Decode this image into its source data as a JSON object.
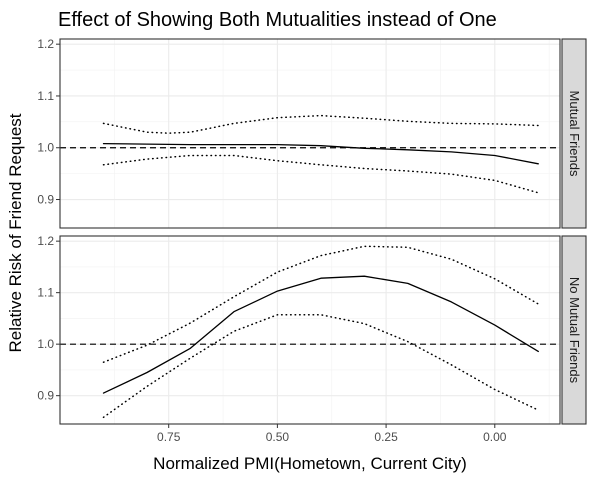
{
  "chart_data": {
    "type": "line",
    "title": "Effect of Showing Both Mutualities instead of One",
    "xlabel": "Normalized PMI(Hometown, Current City)",
    "ylabel": "Relative Risk of Friend Request",
    "x_reversed": true,
    "xlim": [
      1.0,
      -0.15
    ],
    "ylim": [
      0.845,
      1.21
    ],
    "x_ticks": [
      0.75,
      0.5,
      0.25,
      0.0
    ],
    "x_tick_labels": [
      "0.75",
      "0.50",
      "0.25",
      "0.00"
    ],
    "y_ticks": [
      0.9,
      1.0,
      1.1,
      1.2
    ],
    "y_tick_labels": [
      "0.9",
      "1.0",
      "1.1",
      "1.2"
    ],
    "reference_line": 1.0,
    "grid": true,
    "panels": [
      {
        "label": "Mutual Friends",
        "series": [
          {
            "name": "estimate",
            "style": "solid",
            "x": [
              0.9,
              0.8,
              0.7,
              0.6,
              0.5,
              0.4,
              0.3,
              0.2,
              0.1,
              0.0,
              -0.1
            ],
            "y": [
              1.008,
              1.007,
              1.006,
              1.006,
              1.006,
              1.004,
              0.999,
              0.996,
              0.992,
              0.985,
              0.969
            ]
          },
          {
            "name": "upper bound",
            "style": "dotted",
            "x": [
              0.9,
              0.8,
              0.75,
              0.7,
              0.6,
              0.5,
              0.4,
              0.3,
              0.2,
              0.1,
              0.0,
              -0.1
            ],
            "y": [
              1.047,
              1.03,
              1.028,
              1.03,
              1.047,
              1.058,
              1.062,
              1.057,
              1.051,
              1.047,
              1.046,
              1.043
            ]
          },
          {
            "name": "lower bound",
            "style": "dotted",
            "x": [
              0.9,
              0.8,
              0.7,
              0.6,
              0.5,
              0.4,
              0.3,
              0.2,
              0.1,
              0.0,
              -0.1
            ],
            "y": [
              0.967,
              0.978,
              0.985,
              0.985,
              0.975,
              0.967,
              0.96,
              0.955,
              0.949,
              0.937,
              0.913
            ]
          }
        ]
      },
      {
        "label": "No Mutual Friends",
        "series": [
          {
            "name": "estimate",
            "style": "solid",
            "x": [
              0.9,
              0.8,
              0.7,
              0.6,
              0.5,
              0.4,
              0.3,
              0.2,
              0.1,
              0.0,
              -0.1
            ],
            "y": [
              0.905,
              0.945,
              0.992,
              1.063,
              1.103,
              1.128,
              1.132,
              1.118,
              1.082,
              1.037,
              0.986
            ]
          },
          {
            "name": "upper bound",
            "style": "dotted",
            "x": [
              0.9,
              0.8,
              0.7,
              0.6,
              0.5,
              0.4,
              0.3,
              0.2,
              0.1,
              0.0,
              -0.1
            ],
            "y": [
              0.965,
              0.998,
              1.041,
              1.092,
              1.14,
              1.172,
              1.19,
              1.188,
              1.165,
              1.127,
              1.078
            ]
          },
          {
            "name": "lower bound",
            "style": "dotted",
            "x": [
              0.9,
              0.8,
              0.7,
              0.6,
              0.5,
              0.4,
              0.3,
              0.2,
              0.1,
              0.0,
              -0.1
            ],
            "y": [
              0.858,
              0.918,
              0.973,
              1.025,
              1.057,
              1.057,
              1.04,
              1.005,
              0.96,
              0.912,
              0.872
            ]
          }
        ]
      }
    ]
  }
}
